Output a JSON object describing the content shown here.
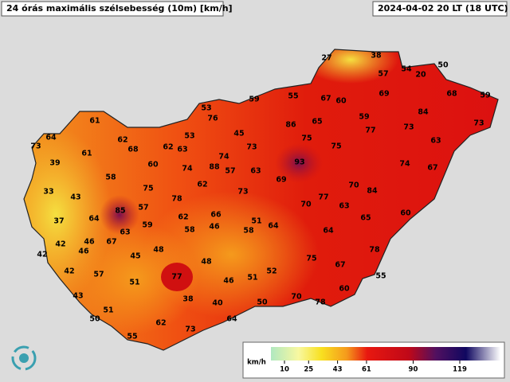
{
  "header": {
    "title": "24 órás maximális szélsebesség (10m) [km/h]",
    "timestamp": "2024-04-02 20 LT (18 UTC)"
  },
  "legend": {
    "unit": "km/h",
    "ticks": [
      10,
      25,
      43,
      61,
      90,
      119
    ]
  },
  "stations": [
    27,
    38,
    50,
    54,
    57,
    20,
    55,
    67,
    60,
    59,
    69,
    68,
    59,
    53,
    76,
    59,
    84,
    65,
    86,
    73,
    61,
    45,
    77,
    73,
    53,
    64,
    62,
    75,
    63,
    73,
    68,
    62,
    63,
    73,
    75,
    74,
    61,
    93,
    39,
    60,
    74,
    88,
    57,
    63,
    74,
    67,
    58,
    69,
    70,
    62,
    33,
    75,
    73,
    84,
    77,
    43,
    78,
    70,
    63,
    85,
    57,
    66,
    60,
    37,
    64,
    62,
    51,
    65,
    59,
    58,
    46,
    58,
    64,
    64,
    63,
    67,
    46,
    42,
    46,
    42,
    48,
    45,
    78,
    75,
    67,
    48,
    42,
    57,
    52,
    51,
    77,
    46,
    55,
    51,
    60,
    43,
    70,
    78,
    38,
    40,
    50,
    51,
    64,
    50,
    62,
    73,
    55
  ]
}
